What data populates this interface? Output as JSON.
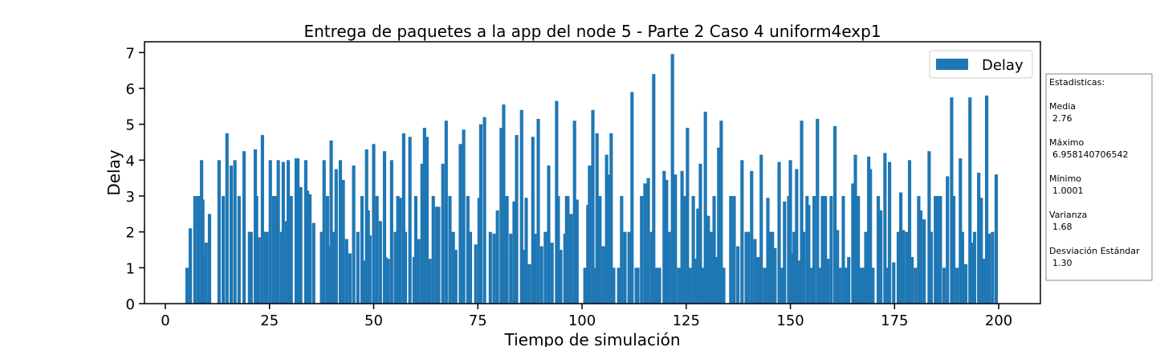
{
  "chart_data": {
    "type": "bar",
    "title": "Entrega de paquetes a la app del node 5 - Parte 2 Caso 4 uniform4exp1",
    "x_label": "Tiempo de simulación",
    "y_label": "Delay",
    "xlim": [
      -5,
      210
    ],
    "ylim": [
      0,
      7.3
    ],
    "xticks": [
      0,
      25,
      50,
      75,
      100,
      125,
      150,
      175,
      200
    ],
    "yticks": [
      0,
      1,
      2,
      3,
      4,
      5,
      6,
      7
    ],
    "legend": "upper right",
    "x": [
      5.2,
      6.0,
      7.1,
      7.9,
      8.7,
      9.0,
      9.4,
      9.8,
      10.6,
      12.9,
      13.9,
      14.8,
      15.8,
      16.7,
      17.7,
      18.9,
      20.2,
      20.6,
      21.6,
      21.9,
      22.5,
      23.3,
      24.1,
      24.4,
      25.2,
      26.0,
      26.4,
      27.1,
      27.9,
      28.3,
      29.1,
      29.5,
      30.2,
      31.4,
      31.8,
      32.5,
      33.7,
      34.1,
      34.7,
      35.6,
      37.5,
      38.1,
      38.9,
      39.3,
      39.8,
      40.4,
      41.0,
      42.0,
      42.7,
      43.5,
      44.3,
      45.2,
      46.2,
      47.2,
      47.7,
      48.3,
      48.7,
      49.1,
      50.0,
      50.8,
      51.6,
      52.6,
      52.9,
      53.5,
      54.3,
      55.2,
      55.8,
      56.4,
      57.2,
      57.6,
      58.7,
      59.7,
      60.1,
      60.8,
      61.6,
      62.2,
      62.8,
      63.5,
      64.3,
      65.1,
      65.6,
      66.6,
      67.4,
      68.3,
      69.1,
      69.7,
      70.8,
      71.6,
      72.6,
      73.2,
      74.5,
      75.3,
      75.7,
      76.6,
      78.0,
      78.9,
      79.7,
      80.6,
      81.2,
      81.6,
      82.0,
      82.9,
      83.7,
      84.3,
      85.5,
      86.0,
      86.6,
      87.4,
      88.2,
      88.7,
      89.5,
      90.3,
      91.2,
      92.0,
      92.8,
      93.9,
      94.3,
      94.9,
      95.9,
      96.3,
      96.6,
      97.4,
      98.2,
      98.8,
      100.7,
      101.4,
      101.8,
      102.6,
      103.0,
      103.6,
      104.3,
      105.1,
      105.9,
      106.5,
      107.0,
      107.6,
      108.8,
      109.5,
      110.3,
      111.3,
      112.0,
      113.0,
      113.4,
      114.3,
      115.1,
      115.9,
      116.7,
      117.2,
      117.8,
      118.6,
      119.7,
      120.3,
      120.9,
      121.7,
      122.4,
      123.2,
      124.0,
      124.7,
      125.3,
      125.9,
      126.7,
      127.2,
      127.8,
      128.4,
      129.0,
      129.6,
      130.3,
      130.9,
      131.7,
      132.2,
      132.8,
      133.4,
      134.0,
      135.7,
      136.5,
      137.4,
      138.4,
      139.4,
      139.9,
      140.7,
      141.5,
      142.3,
      143.0,
      143.8,
      144.6,
      145.3,
      145.7,
      146.3,
      147.3,
      148.0,
      148.6,
      149.6,
      150.0,
      150.5,
      150.9,
      151.5,
      152.1,
      152.7,
      153.2,
      154.0,
      154.4,
      155.2,
      155.7,
      156.5,
      157.1,
      157.7,
      158.4,
      159.0,
      159.8,
      160.7,
      161.3,
      161.9,
      162.7,
      163.4,
      164.0,
      165.0,
      165.6,
      166.3,
      166.9,
      167.5,
      168.1,
      168.8,
      169.2,
      169.8,
      171.1,
      171.7,
      172.7,
      173.3,
      173.8,
      174.8,
      175.9,
      176.5,
      177.1,
      177.9,
      178.6,
      179.2,
      180.0,
      180.8,
      181.3,
      182.1,
      183.3,
      183.8,
      184.8,
      185.4,
      186.0,
      186.9,
      187.7,
      188.7,
      189.2,
      190.0,
      190.8,
      191.3,
      192.1,
      193.1,
      193.7,
      194.2,
      195.2,
      195.8,
      196.4,
      197.1,
      197.7,
      198.5,
      199.4
    ],
    "series": [
      {
        "name": "Delay",
        "color": "#1f77b4",
        "values": [
          1.0001,
          2.1,
          3.0,
          3.0,
          4.0,
          2.9,
          1.35,
          1.7,
          2.5,
          4.0,
          3.0,
          4.75,
          3.85,
          4.0,
          3.0,
          4.25,
          2.0,
          2.0,
          4.3,
          3.0,
          1.85,
          4.7,
          2.0,
          2.0,
          4.0,
          3.0,
          3.0,
          4.0,
          2.0,
          3.95,
          2.3,
          4.0,
          3.0,
          4.05,
          4.05,
          3.25,
          4.0,
          3.15,
          3.05,
          2.25,
          2.0,
          4.0,
          3.0,
          1.6,
          4.55,
          2.0,
          3.75,
          4.0,
          3.45,
          1.8,
          1.4,
          3.85,
          2.0,
          3.0,
          1.2,
          4.3,
          2.6,
          1.9,
          4.45,
          3.0,
          2.3,
          4.25,
          1.3,
          1.25,
          4.0,
          2.0,
          3.0,
          2.95,
          4.75,
          2.0,
          4.65,
          1.3,
          3.0,
          1.8,
          3.9,
          4.9,
          4.65,
          1.25,
          3.0,
          2.7,
          2.7,
          3.9,
          5.1,
          3.0,
          2.0,
          1.5,
          4.45,
          4.85,
          3.0,
          2.0,
          1.65,
          2.95,
          5.0,
          5.2,
          2.0,
          1.95,
          2.6,
          4.9,
          5.55,
          1.3,
          3.0,
          1.95,
          2.85,
          4.7,
          5.4,
          1.5,
          2.95,
          1.1,
          4.65,
          1.95,
          5.15,
          1.6,
          2.0,
          3.85,
          1.7,
          5.65,
          3.0,
          1.5,
          1.95,
          3.0,
          3.0,
          2.5,
          5.1,
          2.9,
          1.0,
          2.75,
          3.85,
          5.4,
          1.0,
          4.75,
          3.0,
          1.6,
          4.15,
          3.6,
          4.75,
          1.0,
          1.0,
          3.0,
          2.0,
          2.0,
          5.9,
          1.0,
          1.0,
          3.0,
          3.35,
          3.5,
          2.0,
          6.4,
          1.0,
          1.0,
          3.7,
          3.45,
          2.0,
          6.958140706542,
          3.6,
          1.0,
          3.7,
          3.0,
          4.9,
          1.0,
          3.0,
          1.25,
          2.65,
          3.9,
          1.0,
          5.35,
          2.45,
          2.0,
          3.0,
          1.3,
          4.35,
          5.1,
          1.0,
          3.0,
          3.0,
          1.6,
          4.0,
          2.0,
          2.0,
          3.7,
          1.8,
          1.3,
          4.15,
          1.0,
          2.95,
          2.0,
          2.0,
          1.55,
          3.95,
          1.0,
          2.85,
          3.0,
          4.0,
          1.4,
          2.0,
          3.75,
          1.2,
          5.1,
          2.0,
          3.0,
          2.75,
          1.0,
          3.0,
          5.15,
          1.0,
          3.0,
          3.0,
          1.25,
          3.0,
          4.95,
          2.05,
          1.0,
          3.0,
          1.0,
          1.3,
          3.35,
          4.15,
          3.0,
          1.0,
          1.0,
          2.0,
          4.1,
          3.75,
          1.0,
          3.0,
          2.6,
          4.2,
          1.0,
          3.95,
          1.15,
          2.0,
          3.1,
          2.05,
          2.0,
          4.0,
          1.3,
          1.0,
          3.0,
          2.6,
          2.35,
          4.25,
          2.0,
          3.0,
          3.0,
          3.0,
          1.0,
          3.55,
          5.75,
          3.0,
          1.0,
          4.05,
          2.0,
          1.1,
          5.75,
          1.7,
          2.0,
          3.65,
          2.95,
          1.25,
          5.8,
          1.95,
          2.0,
          3.6
        ]
      }
    ],
    "stats_box": {
      "title": "Estadisticas:",
      "entries": [
        {
          "label": "Media",
          "value": "2.76"
        },
        {
          "label": "Máximo",
          "value": "6.958140706542"
        },
        {
          "label": "Mínimo",
          "value": "1.0001"
        },
        {
          "label": "Varianza",
          "value": "1.68"
        },
        {
          "label": "Desviación Estándar",
          "value": "1.30"
        }
      ]
    }
  }
}
